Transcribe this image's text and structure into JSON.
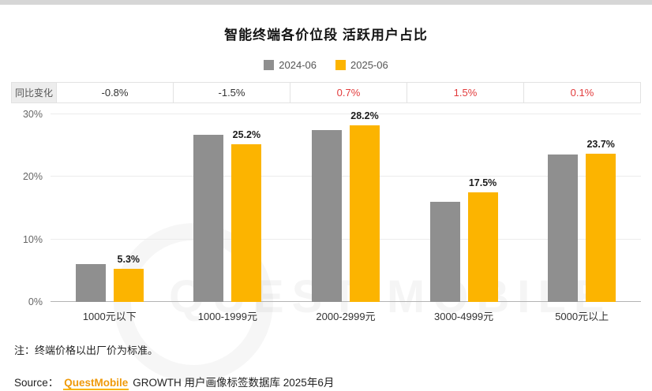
{
  "title": "智能终端各价位段 活跃用户占比",
  "legend": [
    {
      "label": "2024-06",
      "color": "#8f8f8f"
    },
    {
      "label": "2025-06",
      "color": "#fcb400"
    }
  ],
  "yoy_row": {
    "label": "同比变化",
    "values": [
      {
        "text": "-0.8%",
        "color": "#333333"
      },
      {
        "text": "-1.5%",
        "color": "#333333"
      },
      {
        "text": "0.7%",
        "color": "#e23b3c"
      },
      {
        "text": "1.5%",
        "color": "#e23b3c"
      },
      {
        "text": "0.1%",
        "color": "#e23b3c"
      }
    ]
  },
  "chart_data": {
    "type": "bar",
    "title": "智能终端各价位段 活跃用户占比",
    "categories": [
      "1000元以下",
      "1000-1999元",
      "2000-2999元",
      "3000-4999元",
      "5000元以上"
    ],
    "series": [
      {
        "name": "2024-06",
        "color": "#8f8f8f",
        "values": [
          6.1,
          26.7,
          27.5,
          16.0,
          23.6
        ]
      },
      {
        "name": "2025-06",
        "color": "#fcb400",
        "values": [
          5.3,
          25.2,
          28.2,
          17.5,
          23.7
        ],
        "labels": [
          "5.3%",
          "25.2%",
          "28.2%",
          "17.5%",
          "23.7%"
        ]
      }
    ],
    "xlabel": "",
    "ylabel": "",
    "ylim": [
      0,
      30
    ],
    "yticks": [
      "0%",
      "10%",
      "20%",
      "30%"
    ],
    "grid": true,
    "legend_position": "top",
    "yoy_change": [
      "-0.8%",
      "-1.5%",
      "0.7%",
      "1.5%",
      "0.1%"
    ]
  },
  "note": "注：终端价格以出厂价为标准。",
  "source": {
    "prefix": "Source：",
    "brand": "QuestMobile",
    "rest": "GROWTH 用户画像标签数据库 2025年6月"
  },
  "watermark": "QUEST MOBILE"
}
